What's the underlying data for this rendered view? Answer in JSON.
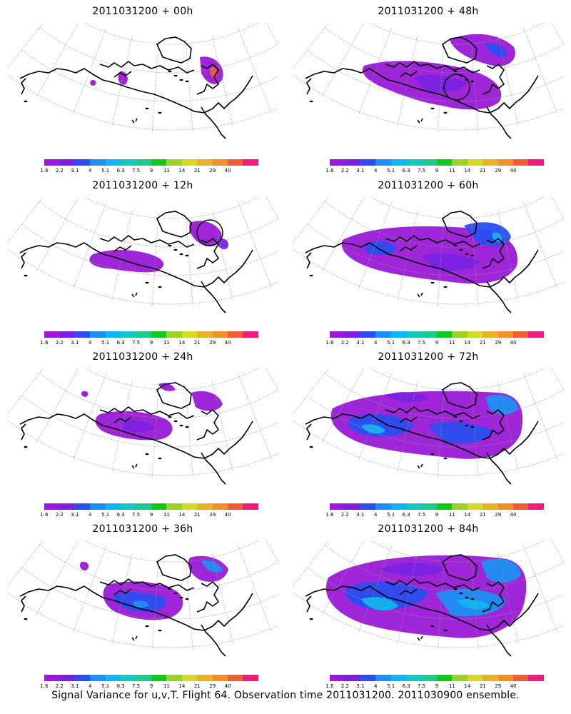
{
  "panels": [
    {
      "title": "2011031200 + 00h",
      "stage": 0
    },
    {
      "title": "2011031200 + 48h",
      "stage": 4
    },
    {
      "title": "2011031200 + 12h",
      "stage": 1
    },
    {
      "title": "2011031200 + 60h",
      "stage": 5
    },
    {
      "title": "2011031200 + 24h",
      "stage": 2
    },
    {
      "title": "2011031200 + 72h",
      "stage": 6
    },
    {
      "title": "2011031200 + 36h",
      "stage": 3
    },
    {
      "title": "2011031200 + 84h",
      "stage": 7
    }
  ],
  "colorbar": {
    "labels": [
      "1.6",
      "2.2",
      "3.1",
      "4",
      "5.1",
      "6.3",
      "7.5",
      "9",
      "11",
      "14",
      "21",
      "29",
      "40"
    ],
    "colors": [
      "#9a1ad6",
      "#7a22e0",
      "#2a4ef0",
      "#1e8ef2",
      "#10b4ee",
      "#14c8c0",
      "#20c88a",
      "#10c820",
      "#9ad22a",
      "#d8d826",
      "#e8b228",
      "#f0902a",
      "#f05c38",
      "#ee1b80"
    ]
  },
  "footer": "Signal Variance for u,v,T. Flight 64. Observation time 2011031200. 2011030900 ensemble."
}
